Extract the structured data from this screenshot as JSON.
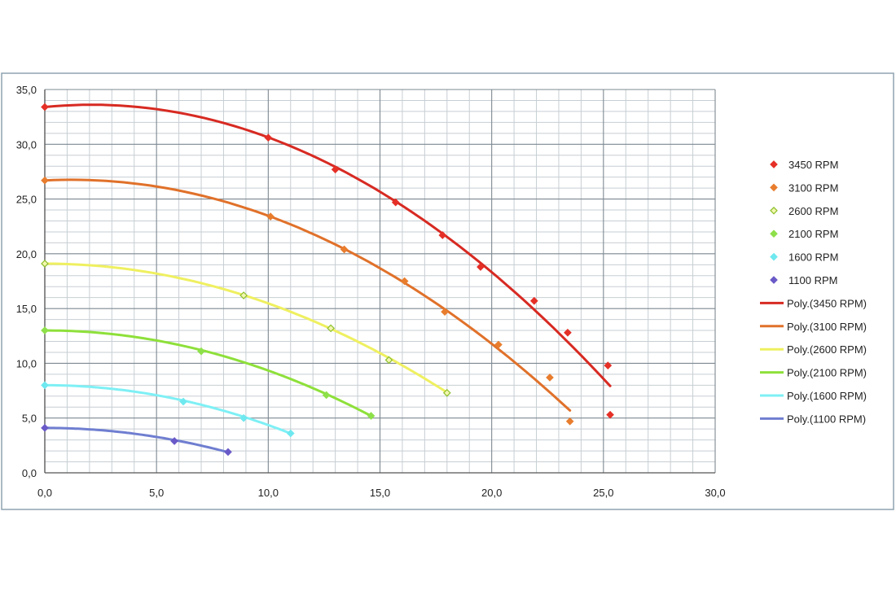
{
  "chart_data": {
    "type": "scatter",
    "title": "",
    "xlabel": "",
    "ylabel": "",
    "xlim": [
      0,
      30
    ],
    "ylim": [
      0,
      35
    ],
    "x_ticks": [
      "0,0",
      "5,0",
      "10,0",
      "15,0",
      "20,0",
      "25,0",
      "30,0"
    ],
    "y_ticks": [
      "0,0",
      "5,0",
      "10,0",
      "15,0",
      "20,0",
      "25,0",
      "30,0",
      "35,0"
    ],
    "grid": true,
    "legend_position": "right",
    "series": [
      {
        "name": "3450 RPM",
        "color": "#e53027",
        "points": [
          [
            0,
            33.4
          ],
          [
            10.0,
            30.6
          ],
          [
            13.0,
            27.7
          ],
          [
            15.7,
            24.7
          ],
          [
            17.8,
            21.7
          ],
          [
            19.5,
            18.8
          ],
          [
            21.9,
            15.7
          ],
          [
            23.4,
            12.8
          ],
          [
            25.2,
            9.8
          ],
          [
            25.3,
            5.3
          ]
        ],
        "trendline": "Poly.(3450 RPM)",
        "trend_x_max": 25.3,
        "coef": [
          33.4,
          0.2,
          -0.0477
        ]
      },
      {
        "name": "3100 RPM",
        "color": "#e87d2e",
        "points": [
          [
            0,
            26.7
          ],
          [
            10.1,
            23.4
          ],
          [
            13.4,
            20.4
          ],
          [
            16.1,
            17.5
          ],
          [
            17.9,
            14.7
          ],
          [
            20.3,
            11.7
          ],
          [
            22.6,
            8.7
          ],
          [
            23.5,
            4.7
          ]
        ],
        "trendline": "Poly.(3100 RPM)",
        "trend_x_max": 23.5,
        "coef": [
          26.7,
          0.1,
          -0.0423
        ]
      },
      {
        "name": "2600 RPM",
        "color": "#d8e84a",
        "marker": "hollow",
        "points": [
          [
            0,
            19.1
          ],
          [
            8.9,
            16.2
          ],
          [
            12.8,
            13.2
          ],
          [
            15.4,
            10.3
          ],
          [
            18.0,
            7.3
          ]
        ],
        "trendline": "Poly.(2600 RPM)",
        "trend_x_max": 18.0,
        "coef": [
          19.1,
          0.0,
          -0.0363
        ]
      },
      {
        "name": "2100 RPM",
        "color": "#8ee04a",
        "points": [
          [
            0,
            13.0
          ],
          [
            7.0,
            11.1
          ],
          [
            12.6,
            7.1
          ],
          [
            14.6,
            5.2
          ]
        ],
        "trendline": "Poly.(2100 RPM)",
        "trend_x_max": 14.6,
        "coef": [
          13.0,
          0.0,
          -0.0366
        ]
      },
      {
        "name": "1600 RPM",
        "color": "#6fe8ef",
        "points": [
          [
            0,
            8.0
          ],
          [
            6.2,
            6.5
          ],
          [
            8.9,
            5.0
          ],
          [
            11.0,
            3.6
          ]
        ],
        "trendline": "Poly.(1600 RPM)",
        "trend_x_max": 11.0,
        "coef": [
          8.0,
          0.0,
          -0.0364
        ]
      },
      {
        "name": "1100 RPM",
        "color": "#6a5ac8",
        "points": [
          [
            0,
            4.1
          ],
          [
            5.8,
            2.9
          ],
          [
            8.2,
            1.9
          ]
        ],
        "trendline": "Poly.(1100 RPM)",
        "trend_x_max": 8.2,
        "coef": [
          4.1,
          0.0,
          -0.033
        ]
      }
    ],
    "trend_colors": [
      "#d72a22",
      "#e0712a",
      "#eff060",
      "#8ee03a",
      "#7ef0f5",
      "#6f7ed0"
    ]
  }
}
